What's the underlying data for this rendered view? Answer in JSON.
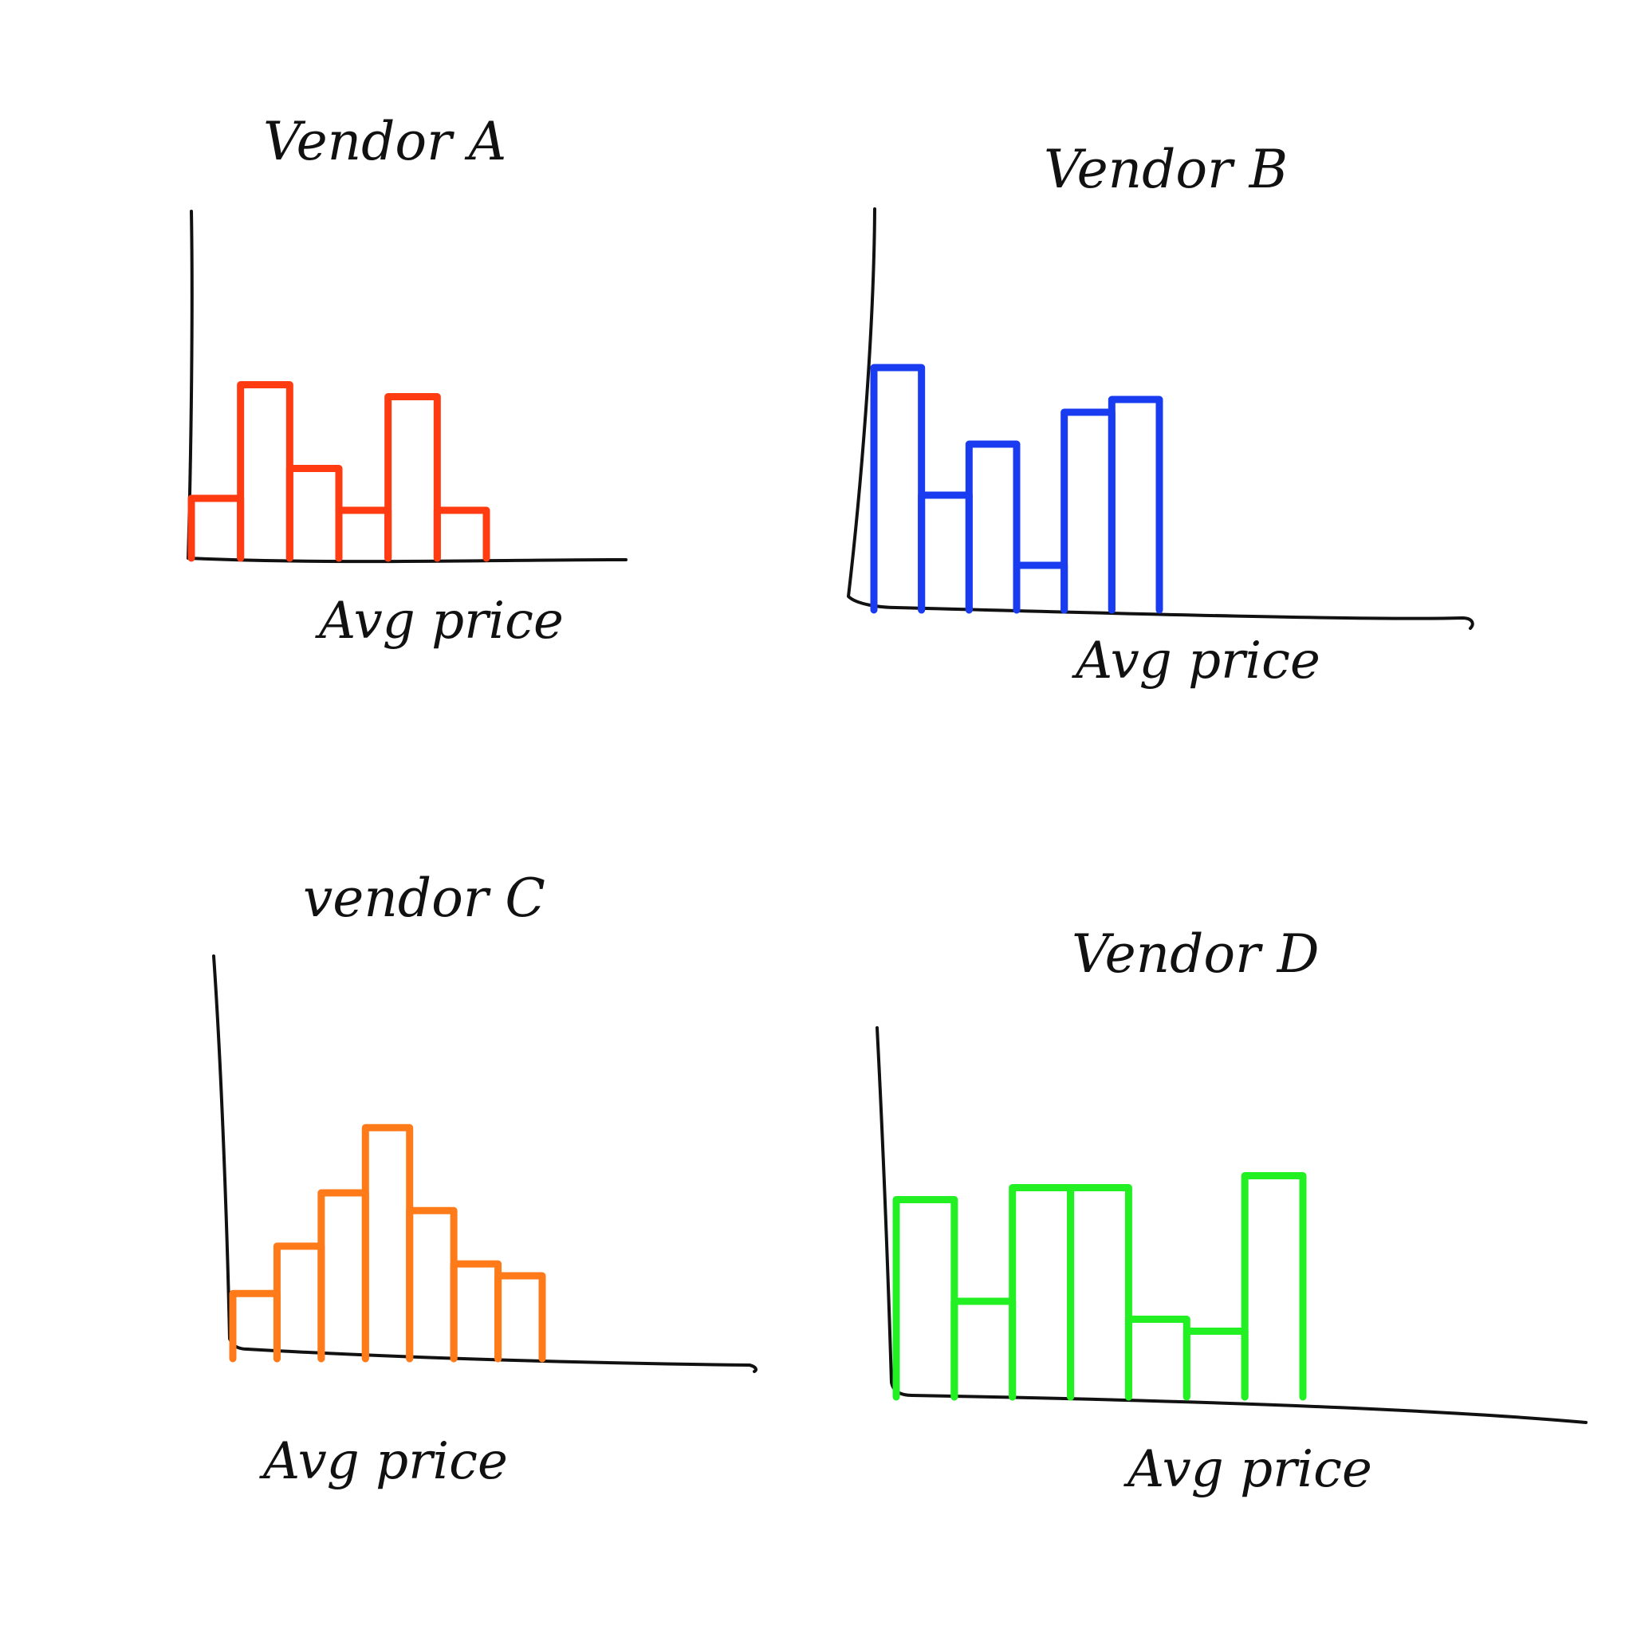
{
  "chart_data": [
    {
      "type": "bar",
      "title": "Vendor A",
      "xlabel": "Avg price",
      "ylabel": "",
      "color": "#ff3b12",
      "values": [
        1.0,
        2.9,
        1.5,
        0.8,
        2.7,
        0.8
      ],
      "ylim": [
        0,
        7
      ],
      "grid": false
    },
    {
      "type": "bar",
      "title": "Vendor B",
      "xlabel": "Avg price",
      "ylabel": "",
      "color": "#1a3cf0",
      "values": [
        3.8,
        1.8,
        2.6,
        0.7,
        3.1,
        3.3
      ],
      "ylim": [
        0,
        7
      ],
      "grid": false
    },
    {
      "type": "bar",
      "title": "vendor C",
      "xlabel": "Avg price",
      "ylabel": "",
      "color": "#ff7a18",
      "values": [
        1.1,
        1.9,
        2.8,
        3.9,
        2.5,
        1.6,
        1.4
      ],
      "ylim": [
        0,
        7
      ],
      "grid": false
    },
    {
      "type": "bar",
      "title": "Vendor D",
      "xlabel": "Avg price",
      "ylabel": "",
      "color": "#22f022",
      "values": [
        3.3,
        1.6,
        3.5,
        3.5,
        1.3,
        1.1,
        3.7
      ],
      "ylim": [
        0,
        7
      ],
      "grid": false
    }
  ]
}
